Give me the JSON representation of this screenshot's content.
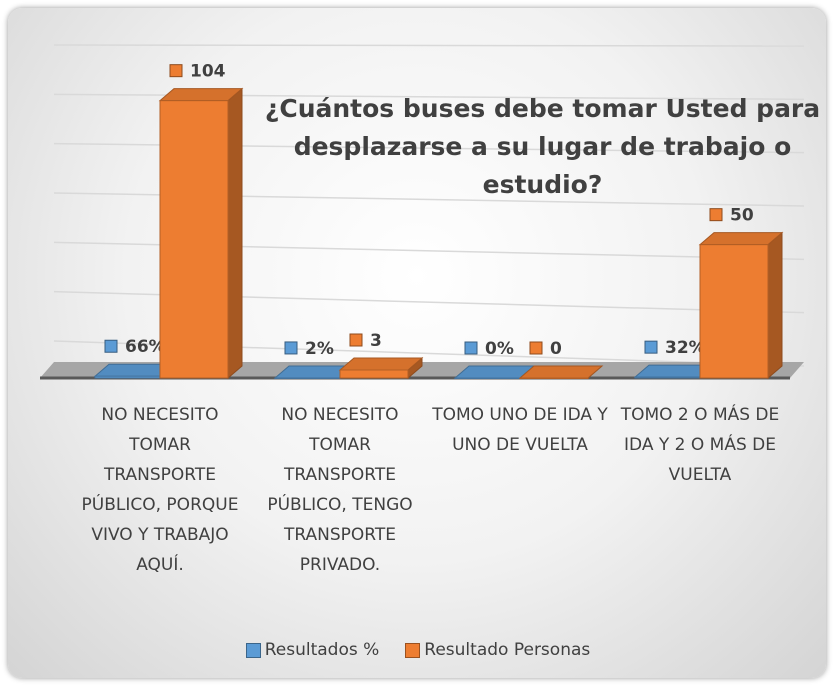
{
  "chart_data": {
    "type": "bar3d",
    "title": "¿Cuántos buses debe tomar Usted para desplazarse a su lugar de trabajo o estudio?",
    "categories": [
      "NO NECESITO TOMAR TRANSPORTE PÚBLICO, PORQUE VIVO Y TRABAJO AQUÍ.",
      "NO NECESITO TOMAR TRANSPORTE PÚBLICO, TENGO TRANSPORTE PRIVADO.",
      "TOMO UNO DE IDA Y UNO DE VUELTA",
      "TOMO 2 O MÁS DE IDA Y 2 O MÁS DE VUELTA"
    ],
    "series": [
      {
        "name": "Resultados %",
        "color": "#5b9bd5",
        "values": [
          0.66,
          0.02,
          0,
          0.32
        ],
        "value_labels": [
          "66%",
          "2%",
          "0%",
          "32%"
        ]
      },
      {
        "name": "Resultado Personas",
        "color": "#ed7d31",
        "values": [
          104,
          3,
          0,
          50
        ],
        "value_labels": [
          "104",
          "3",
          "0",
          "50"
        ]
      }
    ],
    "ylim": [
      0,
      120
    ],
    "yticks": [
      0,
      20,
      40,
      60,
      80,
      100,
      120
    ],
    "grid": true,
    "legend": "bottom"
  }
}
